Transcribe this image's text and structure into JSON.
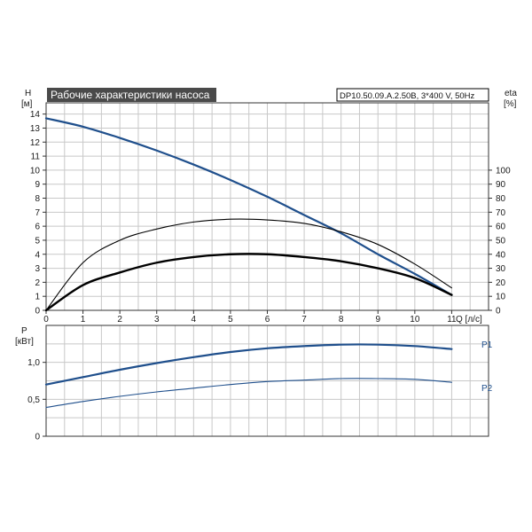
{
  "title": "Рабочие характеристики насоса",
  "model": "DP10.50.09.A.2.50B, 3*400 V, 50Hz",
  "colors": {
    "title_bg": "#4a4a4a",
    "grid": "#c8c8c8",
    "axis": "#333333",
    "blue": "#1f4f8c",
    "black": "#000000"
  },
  "chart_data": [
    {
      "type": "line",
      "name": "H-Q / eta-Q",
      "xlabel": "Q [л/с]",
      "ylabel_left": [
        "H",
        "[м]"
      ],
      "ylabel_right": [
        "eta",
        "[%]"
      ],
      "xlim": [
        0,
        12
      ],
      "ylim_left": [
        0,
        14.8
      ],
      "ylim_right": [
        0,
        148
      ],
      "x_ticks": [
        0,
        1,
        2,
        3,
        4,
        5,
        6,
        7,
        8,
        9,
        10,
        11
      ],
      "y_ticks_left": [
        0,
        1,
        2,
        3,
        4,
        5,
        6,
        7,
        8,
        9,
        10,
        11,
        12,
        13,
        14
      ],
      "y_ticks_right": [
        0,
        10,
        20,
        30,
        40,
        50,
        60,
        70,
        80,
        90,
        100
      ],
      "grid": true,
      "series": [
        {
          "axis": "left",
          "color": "#1f4f8c",
          "x": [
            0,
            1,
            2,
            3,
            4,
            5,
            6,
            7,
            8,
            9,
            10,
            11
          ],
          "y": [
            13.7,
            13.1,
            12.3,
            11.4,
            10.4,
            9.3,
            8.1,
            6.8,
            5.5,
            4.0,
            2.6,
            1.1
          ]
        },
        {
          "axis": "right",
          "color": "#000000",
          "x": [
            0,
            1,
            2,
            3,
            4,
            5,
            6,
            7,
            8,
            9,
            10,
            11
          ],
          "y": [
            0,
            34,
            50,
            58,
            63,
            65,
            64.5,
            62,
            56,
            47,
            33,
            16
          ]
        },
        {
          "axis": "right",
          "color": "#000000",
          "x": [
            0,
            1,
            2,
            3,
            4,
            5,
            6,
            7,
            8,
            9,
            10,
            11
          ],
          "y": [
            0,
            18,
            27,
            34,
            38,
            40,
            40,
            38,
            35,
            30,
            23,
            11
          ]
        }
      ]
    },
    {
      "type": "line",
      "name": "P-Q",
      "ylabel": [
        "P",
        "[кВт]"
      ],
      "xlim": [
        0,
        12
      ],
      "ylim": [
        0,
        1.5
      ],
      "y_ticks": [
        0,
        0.5,
        1.0
      ],
      "y_tick_labels": [
        "0",
        "0,5",
        "1,0"
      ],
      "grid": true,
      "series": [
        {
          "name": "P1",
          "color": "#1f4f8c",
          "x": [
            0,
            1,
            2,
            3,
            4,
            5,
            6,
            7,
            8,
            9,
            10,
            11
          ],
          "y": [
            0.7,
            0.8,
            0.9,
            0.99,
            1.07,
            1.14,
            1.19,
            1.22,
            1.24,
            1.24,
            1.22,
            1.18
          ]
        },
        {
          "name": "P2",
          "color": "#1f4f8c",
          "x": [
            0,
            1,
            2,
            3,
            4,
            5,
            6,
            7,
            8,
            9,
            10,
            11
          ],
          "y": [
            0.39,
            0.47,
            0.54,
            0.6,
            0.65,
            0.7,
            0.74,
            0.76,
            0.78,
            0.78,
            0.77,
            0.73
          ]
        }
      ]
    }
  ]
}
